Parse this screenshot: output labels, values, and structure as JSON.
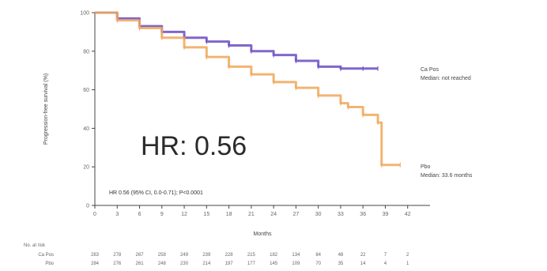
{
  "chart_data": {
    "type": "line",
    "title": "",
    "xlabel": "Months",
    "ylabel": "Progression-free survival (%)",
    "xlim": [
      0,
      45
    ],
    "ylim": [
      0,
      100
    ],
    "x_ticks": [
      0,
      3,
      6,
      9,
      12,
      15,
      18,
      21,
      24,
      27,
      30,
      33,
      36,
      39,
      42
    ],
    "y_ticks": [
      0,
      20,
      40,
      60,
      80,
      100
    ],
    "series": [
      {
        "name": "Ca Pos",
        "color": "#6a4bc4",
        "x": [
          0,
          3,
          6,
          9,
          12,
          15,
          18,
          21,
          24,
          27,
          30,
          33,
          36,
          38
        ],
        "y": [
          100,
          97,
          93,
          90,
          87,
          85,
          83,
          80,
          78,
          75,
          72,
          71,
          71,
          71
        ]
      },
      {
        "name": "Pbo",
        "color": "#f0a75a",
        "x": [
          0,
          3,
          6,
          9,
          12,
          15,
          18,
          21,
          24,
          27,
          30,
          33,
          34,
          36,
          38,
          38.5,
          41
        ],
        "y": [
          100,
          96,
          92,
          87,
          82,
          77,
          72,
          68,
          64,
          61,
          57,
          53,
          51,
          47,
          43,
          21,
          21
        ]
      }
    ],
    "annotations": {
      "hr_big": "HR: 0.56",
      "hr_detail": "HR 0.56 (95% CI, 0.0-0.71); P<0.0001",
      "series_labels": [
        {
          "name": "Ca Pos",
          "sub": "Median: not reached"
        },
        {
          "name": "Pbo",
          "sub": "Median: 33.6 months"
        }
      ]
    },
    "risk_table": {
      "header": "No. at risk",
      "rows": [
        {
          "label": "Ca Pos",
          "values": [
            "283",
            "278",
            "267",
            "258",
            "249",
            "239",
            "228",
            "215",
            "182",
            "134",
            "84",
            "48",
            "22",
            "7",
            "2"
          ]
        },
        {
          "label": "Pbo",
          "values": [
            "284",
            "276",
            "261",
            "248",
            "230",
            "214",
            "197",
            "177",
            "145",
            "109",
            "70",
            "35",
            "14",
            "4",
            "1"
          ]
        }
      ]
    }
  }
}
